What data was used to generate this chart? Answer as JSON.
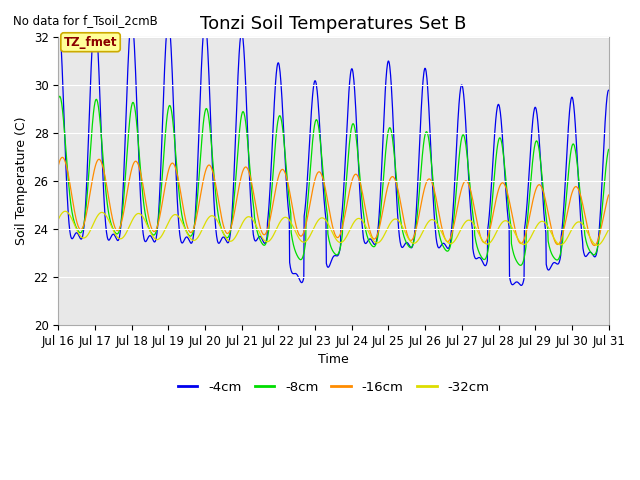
{
  "title": "Tonzi Soil Temperatures Set B",
  "xlabel": "Time",
  "ylabel": "Soil Temperature (C)",
  "no_data_text": "No data for f_Tsoil_2cmB",
  "tz_fmet_label": "TZ_fmet",
  "ylim": [
    20,
    32
  ],
  "yticks": [
    20,
    22,
    24,
    26,
    28,
    30,
    32
  ],
  "xtick_labels": [
    "Jul 16",
    "Jul 17",
    "Jul 18",
    "Jul 19",
    "Jul 20",
    "Jul 21",
    "Jul 22",
    "Jul 23",
    "Jul 24",
    "Jul 25",
    "Jul 26",
    "Jul 27",
    "Jul 28",
    "Jul 29",
    "Jul 30",
    "Jul 31"
  ],
  "colors": {
    "blue": "#0000EE",
    "green": "#00DD00",
    "orange": "#FF8C00",
    "yellow": "#DDDD00"
  },
  "legend_labels": [
    "-4cm",
    "-8cm",
    "-16cm",
    "-32cm"
  ],
  "background_color": "#E8E8E8",
  "title_fontsize": 13,
  "label_fontsize": 9,
  "tick_fontsize": 8.5
}
